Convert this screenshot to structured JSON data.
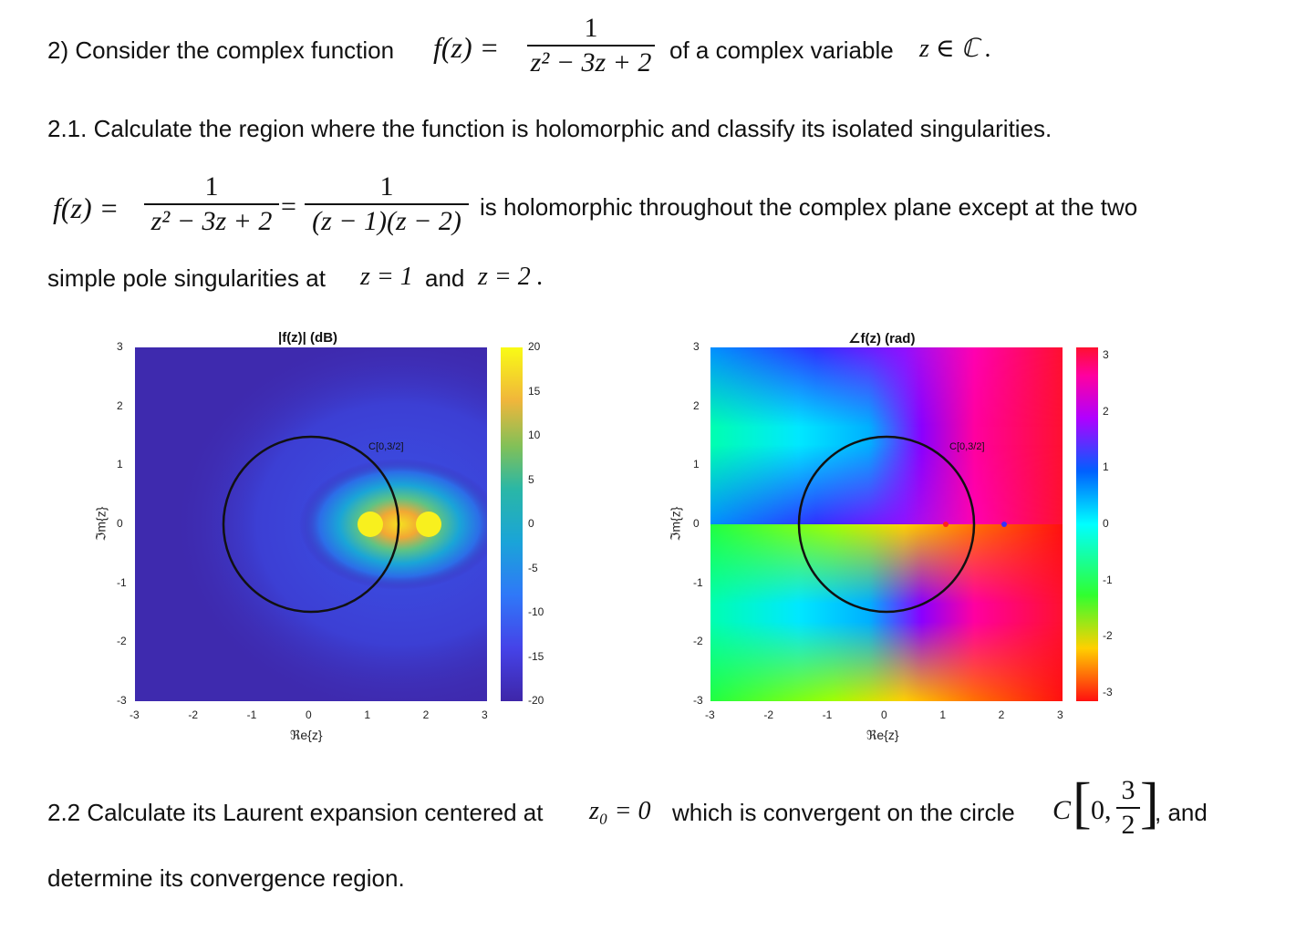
{
  "q2": {
    "prefix": "2) Consider the complex function",
    "f_lhs": "f(z) =",
    "num": "1",
    "den": "z² − 3z + 2",
    "suffix": "of a complex variable",
    "var": "z ∈ ℂ ."
  },
  "q21": {
    "text": "2.1. Calculate the region where the function is holomorphic and classify its isolated singularities."
  },
  "answer": {
    "lhs": "f(z) =",
    "num1": "1",
    "den1": "z² − 3z + 2",
    "eq": "=",
    "num2": "1",
    "den2": "(z − 1)(z − 2)",
    "tail": "is holomorphic throughout the complex plane except at the two",
    "line2_a": "simple pole singularities at",
    "pole1": "z = 1",
    "and": "and",
    "pole2": "z = 2 ."
  },
  "plot_left": {
    "title": "|f(z)| (dB)",
    "circle_label": "C[0,3/2]",
    "xlabel": "ℜe{z}",
    "ylabel": "ℑm{z}",
    "xticks": [
      "-3",
      "-2",
      "-1",
      "0",
      "1",
      "2",
      "3"
    ],
    "yticks": [
      "3",
      "2",
      "1",
      "0",
      "-1",
      "-2",
      "-3"
    ],
    "cbticks": [
      "20",
      "15",
      "10",
      "5",
      "0",
      "-5",
      "-10",
      "-15",
      "-20"
    ]
  },
  "plot_right": {
    "title": "∠f(z) (rad)",
    "circle_label": "C[0,3/2]",
    "xlabel": "ℜe{z}",
    "ylabel": "ℑm{z}",
    "xticks": [
      "-3",
      "-2",
      "-1",
      "0",
      "1",
      "2",
      "3"
    ],
    "yticks": [
      "3",
      "2",
      "1",
      "0",
      "-1",
      "-2",
      "-3"
    ],
    "cbticks": [
      "3",
      "2",
      "1",
      "0",
      "-1",
      "-2",
      "-3"
    ]
  },
  "q22": {
    "text_a": "2.2 Calculate its Laurent expansion centered at",
    "z0": "z₀ = 0",
    "text_b": "which is convergent on the circle",
    "circle": "C",
    "circle_args_a": "0,",
    "circle_num": "3",
    "circle_den": "2",
    "text_c": ", and",
    "line2": "determine its convergence region."
  },
  "colors": {
    "parula_low": "#3e26a8",
    "parula_high": "#f9fb15",
    "circle": "#111111"
  }
}
